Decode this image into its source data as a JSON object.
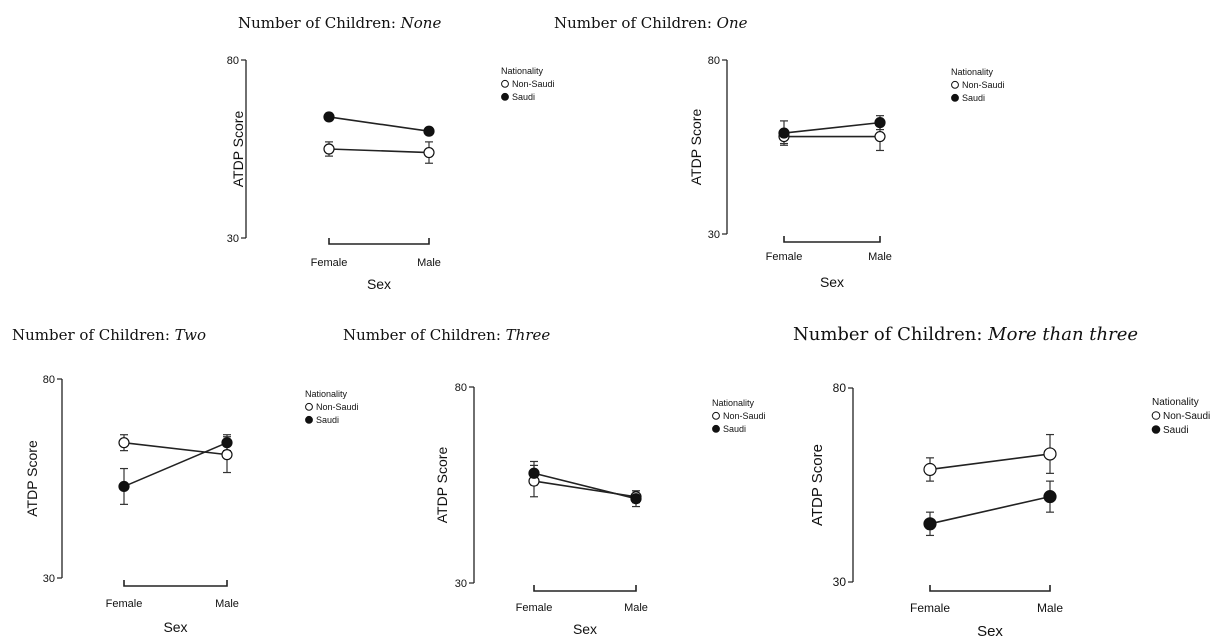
{
  "chart_data": [
    {
      "type": "line",
      "title_prefix": "Number of Children: ",
      "title_value": "None",
      "xlabel": "Sex",
      "ylabel": "ATDP Score",
      "ylim": [
        30,
        80
      ],
      "yticks": [
        "80",
        "30"
      ],
      "categories": [
        "Female",
        "Male"
      ],
      "legend_title": "Nationality",
      "legend_position": "top-right",
      "grid": false,
      "series": [
        {
          "name": "Non-Saudi",
          "marker": "open",
          "values": [
            55,
            54
          ],
          "errors": [
            2.0,
            3.0
          ]
        },
        {
          "name": "Saudi",
          "marker": "filled",
          "values": [
            64,
            60
          ],
          "errors": [
            1.0,
            1.0
          ]
        }
      ]
    },
    {
      "type": "line",
      "title_prefix": "Number of Children: ",
      "title_value": "One",
      "xlabel": "Sex",
      "ylabel": "ATDP Score",
      "ylim": [
        30,
        80
      ],
      "yticks": [
        "80",
        "30"
      ],
      "categories": [
        "Female",
        "Male"
      ],
      "legend_title": "Nationality",
      "legend_position": "top-right",
      "grid": false,
      "series": [
        {
          "name": "Non-Saudi",
          "marker": "open",
          "values": [
            58,
            58
          ],
          "errors": [
            2.0,
            4.0
          ]
        },
        {
          "name": "Saudi",
          "marker": "filled",
          "values": [
            59,
            62
          ],
          "errors": [
            3.5,
            2.0
          ]
        }
      ]
    },
    {
      "type": "line",
      "title_prefix": "Number of Children: ",
      "title_value": "Two",
      "xlabel": "Sex",
      "ylabel": "ATDP Score",
      "ylim": [
        30,
        80
      ],
      "yticks": [
        "80",
        "30"
      ],
      "categories": [
        "Female",
        "Male"
      ],
      "legend_title": "Nationality",
      "legend_position": "top-right",
      "grid": false,
      "series": [
        {
          "name": "Non-Saudi",
          "marker": "open",
          "values": [
            64,
            61
          ],
          "errors": [
            2.0,
            4.5
          ]
        },
        {
          "name": "Saudi",
          "marker": "filled",
          "values": [
            53,
            64
          ],
          "errors": [
            4.5,
            2.0
          ]
        }
      ]
    },
    {
      "type": "line",
      "title_prefix": "Number of Children: ",
      "title_value": "Three",
      "xlabel": "Sex",
      "ylabel": "ATDP Score",
      "ylim": [
        30,
        80
      ],
      "yticks": [
        "80",
        "30"
      ],
      "categories": [
        "Female",
        "Male"
      ],
      "legend_title": "Nationality",
      "legend_position": "top-right",
      "grid": false,
      "series": [
        {
          "name": "Non-Saudi",
          "marker": "open",
          "values": [
            56,
            52
          ],
          "errors": [
            4.0,
            1.5
          ]
        },
        {
          "name": "Saudi",
          "marker": "filled",
          "values": [
            58,
            51.5
          ],
          "errors": [
            3.0,
            2.0
          ]
        }
      ]
    },
    {
      "type": "line",
      "title_prefix": "Number of Children: ",
      "title_value": "More than three",
      "xlabel": "Sex",
      "ylabel": "ATDP Score",
      "ylim": [
        30,
        80
      ],
      "yticks": [
        "80",
        "30"
      ],
      "categories": [
        "Female",
        "Male"
      ],
      "legend_title": "Nationality",
      "legend_position": "top-right",
      "grid": false,
      "series": [
        {
          "name": "Non-Saudi",
          "marker": "open",
          "values": [
            59,
            63
          ],
          "errors": [
            3.0,
            5.0
          ]
        },
        {
          "name": "Saudi",
          "marker": "filled",
          "values": [
            45,
            52
          ],
          "errors": [
            3.0,
            4.0
          ]
        }
      ]
    }
  ]
}
